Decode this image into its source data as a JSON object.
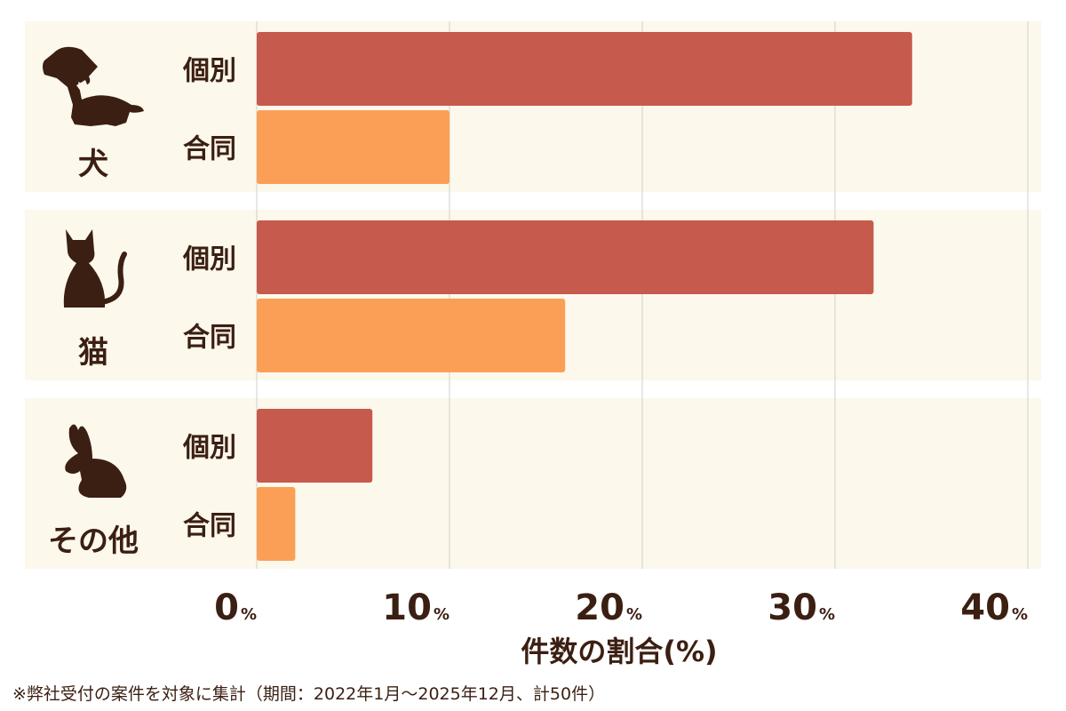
{
  "chart_data": {
    "type": "bar",
    "orientation": "horizontal",
    "categories": [
      "犬",
      "猫",
      "その他"
    ],
    "series": [
      {
        "name": "個別",
        "values": [
          34,
          32,
          6
        ]
      },
      {
        "name": "合同",
        "values": [
          10,
          16,
          2
        ]
      }
    ],
    "xlim": [
      0,
      40
    ],
    "x_ticks": [
      0,
      10,
      20,
      30,
      40
    ],
    "tick_unit": "%",
    "xlabel": "件数の割合(%)",
    "grid": true,
    "legend": "none"
  },
  "colors": {
    "individual": "#c65a4d",
    "joint": "#fb9f57",
    "panel": "#fcf8ec",
    "text": "#3b1f12",
    "icon": "#3b1f12"
  },
  "icons": [
    "dog-icon",
    "cat-icon",
    "rabbit-icon"
  ],
  "footnote": "※弊社受付の案件を対象に集計（期間：2022年1月〜2025年12月、計50件）"
}
